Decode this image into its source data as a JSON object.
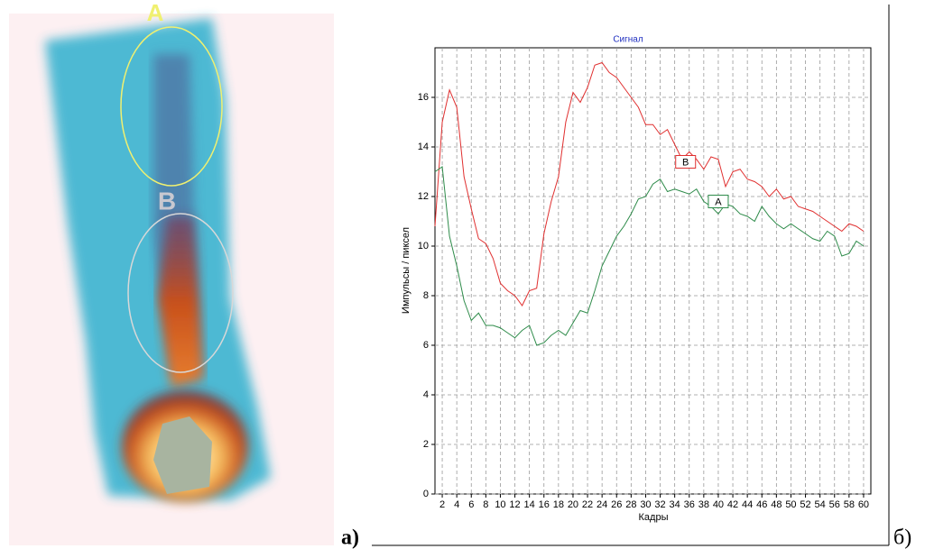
{
  "image": {
    "labels": [
      "A",
      "B"
    ]
  },
  "panel_labels": [
    "а)",
    "б)"
  ],
  "chart_data": {
    "type": "line",
    "title": "Сигнал",
    "x_label": "Кадры",
    "y_label": "Импульсы / пиксел",
    "x": [
      1,
      2,
      3,
      4,
      5,
      6,
      7,
      8,
      9,
      10,
      11,
      12,
      13,
      14,
      15,
      16,
      17,
      18,
      19,
      20,
      21,
      22,
      23,
      24,
      25,
      26,
      27,
      28,
      29,
      30,
      31,
      32,
      33,
      34,
      35,
      36,
      37,
      38,
      39,
      40,
      41,
      42,
      43,
      44,
      45,
      46,
      47,
      48,
      49,
      50,
      51,
      52,
      53,
      54,
      55,
      56,
      57,
      58,
      59,
      60
    ],
    "series": [
      {
        "name": "B",
        "color": "#e03030",
        "values": [
          10.8,
          15,
          16.3,
          15.6,
          12.8,
          11.5,
          10.3,
          10.1,
          9.5,
          8.5,
          8.2,
          8.0,
          7.6,
          8.2,
          8.3,
          10.5,
          11.8,
          12.8,
          15,
          16.2,
          15.8,
          16.4,
          17.3,
          17.4,
          17.0,
          16.8,
          16.4,
          16.0,
          15.6,
          14.9,
          14.9,
          14.5,
          14.7,
          14.1,
          13.5,
          13.8,
          13.5,
          13.1,
          13.6,
          13.5,
          12.4,
          13.0,
          13.1,
          12.7,
          12.6,
          12.4,
          12.0,
          12.3,
          11.9,
          12.0,
          11.6,
          11.5,
          11.4,
          11.2,
          11.0,
          10.8,
          10.6,
          10.9,
          10.8,
          10.6
        ]
      },
      {
        "name": "A",
        "color": "#2e8b4a",
        "values": [
          13.0,
          13.2,
          10.4,
          9.2,
          7.8,
          7.0,
          7.3,
          6.8,
          6.8,
          6.7,
          6.5,
          6.3,
          6.6,
          6.8,
          6.0,
          6.1,
          6.4,
          6.6,
          6.4,
          6.9,
          7.4,
          7.3,
          8.2,
          9.2,
          9.8,
          10.4,
          10.8,
          11.3,
          11.9,
          12.0,
          12.5,
          12.7,
          12.2,
          12.3,
          12.2,
          12.1,
          12.3,
          11.8,
          11.6,
          11.3,
          11.7,
          11.6,
          11.3,
          11.2,
          11.0,
          11.6,
          11.2,
          10.9,
          10.7,
          10.9,
          10.7,
          10.5,
          10.3,
          10.2,
          10.6,
          10.4,
          9.6,
          9.7,
          10.2,
          10.0
        ]
      }
    ],
    "series_labels": [
      {
        "text": "B",
        "x": 35.5,
        "y": 13.4
      },
      {
        "text": "A",
        "x": 40,
        "y": 11.8
      }
    ],
    "xlim": [
      1,
      61
    ],
    "ylim": [
      0,
      18
    ],
    "xticks": [
      2,
      4,
      6,
      8,
      10,
      12,
      14,
      16,
      18,
      20,
      22,
      24,
      26,
      28,
      30,
      32,
      34,
      36,
      38,
      40,
      42,
      44,
      46,
      48,
      50,
      52,
      54,
      56,
      58,
      60
    ],
    "yticks": [
      0,
      2,
      4,
      6,
      8,
      10,
      12,
      14,
      16
    ],
    "grid": true
  }
}
